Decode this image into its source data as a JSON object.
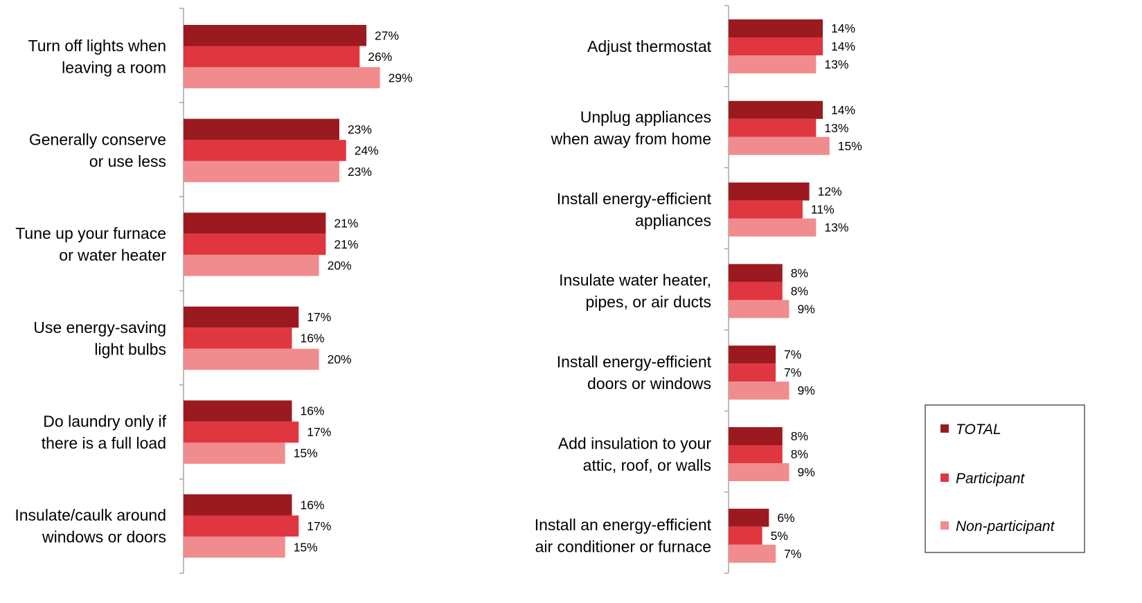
{
  "colors": {
    "total": "#9b1a1f",
    "participant": "#df3640",
    "non_participant": "#f08c8e"
  },
  "chart_data": [
    {
      "type": "bar",
      "orientation": "horizontal",
      "series_names": [
        "TOTAL",
        "Participant",
        "Non-participant"
      ],
      "categories": [
        [
          "Turn off lights when",
          "leaving a room"
        ],
        [
          "Generally conserve",
          "or use less"
        ],
        [
          "Tune up your furnace",
          "or water heater"
        ],
        [
          "Use energy-saving",
          "light bulbs"
        ],
        [
          "Do laundry only if",
          "there is a full load"
        ],
        [
          "Insulate/caulk around",
          "windows or doors"
        ]
      ],
      "values": [
        [
          27,
          26,
          29
        ],
        [
          23,
          24,
          23
        ],
        [
          21,
          21,
          20
        ],
        [
          17,
          16,
          20
        ],
        [
          16,
          17,
          15
        ],
        [
          16,
          17,
          15
        ]
      ],
      "value_labels": [
        [
          "27%",
          "26%",
          "29%"
        ],
        [
          "23%",
          "24%",
          "23%"
        ],
        [
          "21%",
          "21%",
          "20%"
        ],
        [
          "17%",
          "16%",
          "20%"
        ],
        [
          "16%",
          "17%",
          "15%"
        ],
        [
          "16%",
          "17%",
          "15%"
        ]
      ]
    },
    {
      "type": "bar",
      "orientation": "horizontal",
      "series_names": [
        "TOTAL",
        "Participant",
        "Non-participant"
      ],
      "categories": [
        [
          "Adjust thermostat"
        ],
        [
          "Unplug appliances",
          "when away from home"
        ],
        [
          "Install energy-efficient",
          "appliances"
        ],
        [
          "Insulate water heater,",
          "pipes, or air ducts"
        ],
        [
          "Install energy-efficient",
          "doors or windows"
        ],
        [
          "Add insulation to your",
          "attic, roof, or walls"
        ],
        [
          "Install an energy-efficient",
          "air conditioner or furnace"
        ]
      ],
      "values": [
        [
          14,
          14,
          13
        ],
        [
          14,
          13,
          15
        ],
        [
          12,
          11,
          13
        ],
        [
          8,
          8,
          9
        ],
        [
          7,
          7,
          9
        ],
        [
          8,
          8,
          9
        ],
        [
          6,
          5,
          7
        ]
      ],
      "value_labels": [
        [
          "14%",
          "14%",
          "13%"
        ],
        [
          "14%",
          "13%",
          "15%"
        ],
        [
          "12%",
          "11%",
          "13%"
        ],
        [
          "8%",
          "8%",
          "9%"
        ],
        [
          "7%",
          "7%",
          "9%"
        ],
        [
          "8%",
          "8%",
          "9%"
        ],
        [
          "6%",
          "5%",
          "7%"
        ]
      ]
    }
  ],
  "legend": {
    "position": "right",
    "items": [
      {
        "label": "TOTAL",
        "color_key": "total"
      },
      {
        "label": "Participant",
        "color_key": "participant"
      },
      {
        "label": "Non-participant",
        "color_key": "non_participant"
      }
    ]
  }
}
